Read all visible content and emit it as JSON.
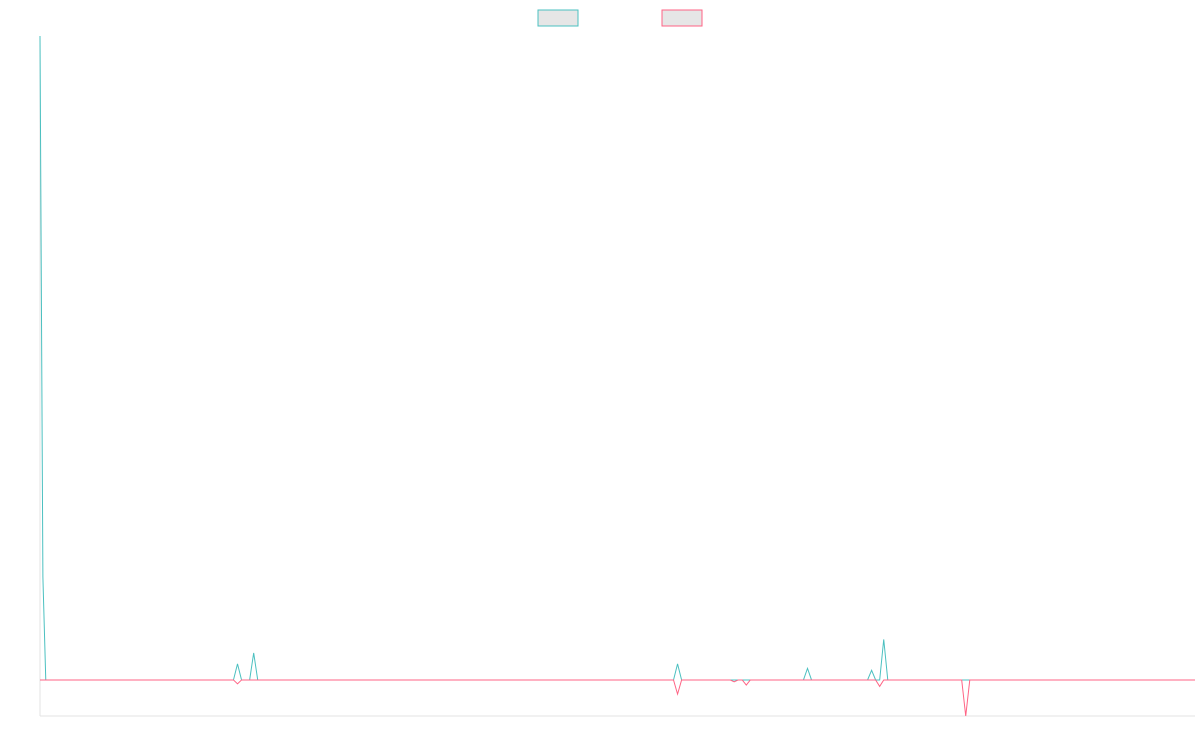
{
  "chart_data": {
    "type": "line",
    "title": "",
    "xlabel": "",
    "ylabel": "",
    "grid": false,
    "legend_placement": "top-center",
    "x_range": [
      0,
      200
    ],
    "ylim": [
      -0.56,
      10
    ],
    "series": [
      {
        "name": "",
        "color": "#4bc0c0",
        "fill": "#e6e6e6",
        "points": [
          [
            0,
            10
          ],
          [
            0.5,
            1.6
          ],
          [
            1,
            0
          ],
          [
            33.5,
            0
          ],
          [
            34.2,
            0.25
          ],
          [
            34.9,
            0
          ],
          [
            36.3,
            0
          ],
          [
            37,
            0.42
          ],
          [
            37.7,
            0
          ],
          [
            109.7,
            0
          ],
          [
            110.4,
            0.25
          ],
          [
            111.1,
            0
          ],
          [
            132.2,
            0
          ],
          [
            132.9,
            0.18
          ],
          [
            133.6,
            0
          ],
          [
            143.3,
            0
          ],
          [
            144,
            0.15
          ],
          [
            144.7,
            0
          ],
          [
            145.4,
            0
          ],
          [
            146.1,
            0.63
          ],
          [
            146.8,
            0
          ],
          [
            200,
            0
          ]
        ]
      },
      {
        "name": "",
        "color": "#ff6384",
        "fill": "#e6e6e6",
        "points": [
          [
            0,
            0
          ],
          [
            33.5,
            0
          ],
          [
            34.2,
            -0.06
          ],
          [
            34.9,
            0
          ],
          [
            109.7,
            0
          ],
          [
            110.4,
            -0.22
          ],
          [
            111.1,
            0
          ],
          [
            119.5,
            0
          ],
          [
            120.2,
            -0.03
          ],
          [
            120.9,
            0
          ],
          [
            121.6,
            0
          ],
          [
            122.3,
            -0.08
          ],
          [
            123,
            0
          ],
          [
            144.7,
            0
          ],
          [
            145.4,
            -0.1
          ],
          [
            146.1,
            0
          ],
          [
            159.6,
            0
          ],
          [
            160.3,
            -0.56
          ],
          [
            161,
            0
          ],
          [
            200,
            0
          ]
        ]
      }
    ]
  }
}
